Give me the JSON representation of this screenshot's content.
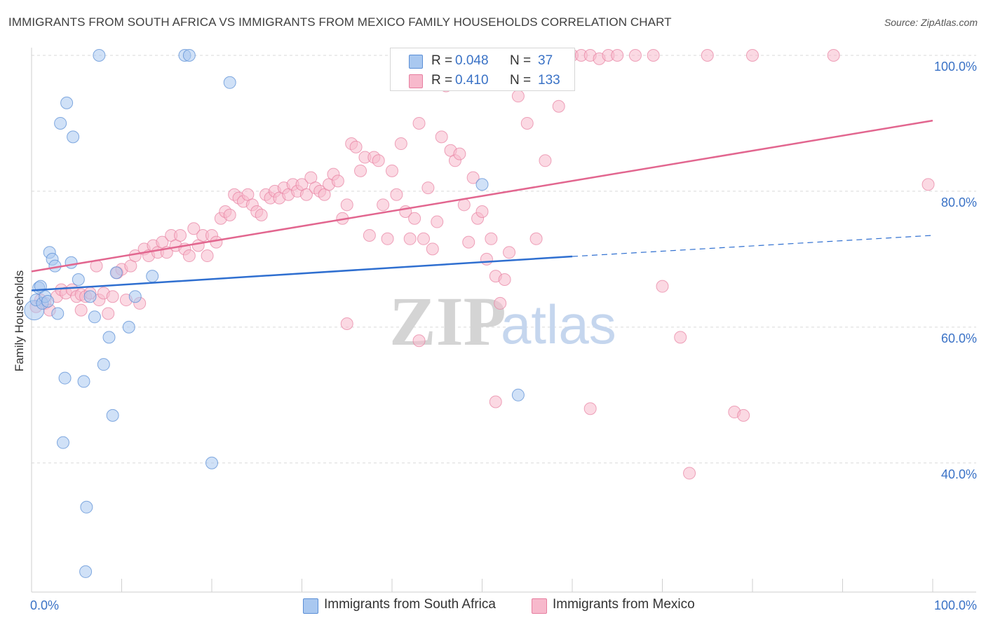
{
  "title": "IMMIGRANTS FROM SOUTH AFRICA VS IMMIGRANTS FROM MEXICO FAMILY HOUSEHOLDS CORRELATION CHART",
  "source": "Source: ZipAtlas.com",
  "watermark": {
    "zip": "ZIP",
    "atlas": "atlas"
  },
  "legend": {
    "r_label": "R =",
    "n_label": "N =",
    "rows": [
      {
        "r": "0.048",
        "n": "37"
      },
      {
        "r": "0.410",
        "n": "133"
      }
    ]
  },
  "colors": {
    "south_africa_fill": "#a9c8f0",
    "south_africa_stroke": "#5b8fd6",
    "south_africa_line": "#2f6fd0",
    "mexico_fill": "#f7b9cc",
    "mexico_stroke": "#e77fa0",
    "mexico_line": "#e2668f",
    "tick_text": "#3a72c6",
    "grid": "#d9d9d9"
  },
  "chart_data": {
    "type": "scatter",
    "title": "IMMIGRANTS FROM SOUTH AFRICA VS IMMIGRANTS FROM MEXICO FAMILY HOUSEHOLDS CORRELATION CHART",
    "xlabel": "",
    "ylabel": "Family Households",
    "xlim": [
      0,
      100
    ],
    "ylim": [
      21,
      104
    ],
    "x_tick_labels": [
      "0.0%",
      "100.0%"
    ],
    "y_ticks": [
      40,
      60,
      80,
      100
    ],
    "y_tick_labels": [
      "40.0%",
      "60.0%",
      "80.0%",
      "100.0%"
    ],
    "grid": "horizontal dashed",
    "legend_position": "top-center",
    "series": [
      {
        "name": "Immigrants from South Africa",
        "r": 0.048,
        "n": 37,
        "trend": {
          "x": [
            0,
            60
          ],
          "y": [
            65.4,
            70.4
          ],
          "dashed_extension_to": [
            100,
            73.5
          ]
        },
        "points": [
          [
            0.3,
            62.5
          ],
          [
            0.5,
            64.0
          ],
          [
            0.8,
            65.8
          ],
          [
            1.0,
            66.0
          ],
          [
            1.2,
            63.5
          ],
          [
            1.5,
            64.5
          ],
          [
            1.8,
            63.8
          ],
          [
            2.0,
            71.0
          ],
          [
            2.3,
            70.0
          ],
          [
            2.6,
            69.0
          ],
          [
            2.9,
            62.0
          ],
          [
            3.2,
            90.0
          ],
          [
            3.9,
            93.0
          ],
          [
            4.4,
            69.5
          ],
          [
            4.6,
            88.0
          ],
          [
            5.2,
            67.0
          ],
          [
            6.5,
            64.5
          ],
          [
            7.0,
            61.5
          ],
          [
            7.5,
            100.0
          ],
          [
            8.0,
            54.5
          ],
          [
            8.6,
            58.5
          ],
          [
            9.0,
            47.0
          ],
          [
            9.4,
            68.0
          ],
          [
            10.8,
            60.0
          ],
          [
            11.5,
            64.5
          ],
          [
            13.4,
            67.5
          ],
          [
            17.0,
            100.0
          ],
          [
            17.5,
            100.0
          ],
          [
            20.0,
            40.0
          ],
          [
            22.0,
            96.0
          ],
          [
            3.7,
            52.5
          ],
          [
            5.8,
            52.0
          ],
          [
            3.5,
            43.0
          ],
          [
            6.1,
            33.5
          ],
          [
            6.0,
            24.0
          ],
          [
            50.0,
            81.0
          ],
          [
            54.0,
            50.0
          ]
        ]
      },
      {
        "name": "Immigrants from Mexico",
        "r": 0.41,
        "n": 133,
        "trend": {
          "x": [
            0,
            100
          ],
          "y": [
            68.2,
            90.4
          ]
        },
        "points": [
          [
            0.5,
            63.0
          ],
          [
            1.0,
            64.0
          ],
          [
            1.5,
            63.5
          ],
          [
            2.0,
            62.5
          ],
          [
            2.8,
            64.5
          ],
          [
            3.3,
            65.5
          ],
          [
            3.8,
            65.0
          ],
          [
            4.5,
            65.5
          ],
          [
            5.0,
            64.5
          ],
          [
            5.5,
            64.8
          ],
          [
            6.0,
            64.5
          ],
          [
            6.5,
            65.0
          ],
          [
            7.2,
            69.0
          ],
          [
            7.5,
            64.0
          ],
          [
            8.0,
            65.0
          ],
          [
            8.5,
            62.0
          ],
          [
            9.0,
            64.5
          ],
          [
            9.5,
            68.0
          ],
          [
            10.0,
            68.5
          ],
          [
            10.5,
            64.0
          ],
          [
            11.0,
            69.0
          ],
          [
            11.5,
            70.5
          ],
          [
            12.0,
            63.5
          ],
          [
            12.5,
            71.5
          ],
          [
            13.0,
            70.5
          ],
          [
            13.5,
            72.0
          ],
          [
            14.0,
            71.0
          ],
          [
            14.5,
            72.5
          ],
          [
            15.0,
            71.0
          ],
          [
            15.5,
            73.5
          ],
          [
            16.0,
            72.0
          ],
          [
            16.5,
            73.5
          ],
          [
            17.0,
            71.5
          ],
          [
            17.5,
            70.5
          ],
          [
            18.0,
            74.5
          ],
          [
            18.5,
            72.0
          ],
          [
            19.0,
            73.5
          ],
          [
            19.5,
            70.5
          ],
          [
            20.0,
            73.5
          ],
          [
            20.5,
            72.5
          ],
          [
            21.0,
            76.0
          ],
          [
            21.5,
            77.0
          ],
          [
            22.0,
            76.5
          ],
          [
            22.5,
            79.5
          ],
          [
            23.0,
            79.0
          ],
          [
            23.5,
            78.5
          ],
          [
            24.0,
            79.5
          ],
          [
            24.5,
            78.0
          ],
          [
            25.0,
            77.0
          ],
          [
            25.5,
            76.5
          ],
          [
            26.0,
            79.5
          ],
          [
            26.5,
            79.0
          ],
          [
            27.0,
            80.0
          ],
          [
            27.5,
            79.0
          ],
          [
            28.0,
            80.5
          ],
          [
            28.5,
            79.5
          ],
          [
            29.0,
            81.0
          ],
          [
            29.5,
            80.0
          ],
          [
            30.0,
            81.0
          ],
          [
            30.5,
            79.5
          ],
          [
            31.0,
            82.0
          ],
          [
            31.5,
            80.5
          ],
          [
            32.0,
            80.0
          ],
          [
            32.5,
            79.5
          ],
          [
            33.0,
            81.0
          ],
          [
            33.5,
            82.5
          ],
          [
            34.0,
            81.5
          ],
          [
            34.5,
            76.0
          ],
          [
            35.0,
            78.0
          ],
          [
            35.5,
            87.0
          ],
          [
            36.0,
            86.5
          ],
          [
            36.5,
            83.0
          ],
          [
            37.0,
            85.0
          ],
          [
            37.5,
            73.5
          ],
          [
            38.0,
            85.0
          ],
          [
            38.5,
            84.5
          ],
          [
            39.0,
            78.0
          ],
          [
            39.5,
            73.0
          ],
          [
            40.0,
            83.0
          ],
          [
            40.5,
            79.5
          ],
          [
            41.0,
            87.0
          ],
          [
            41.5,
            77.0
          ],
          [
            42.0,
            73.0
          ],
          [
            42.5,
            76.0
          ],
          [
            43.0,
            90.0
          ],
          [
            43.5,
            73.0
          ],
          [
            44.0,
            80.5
          ],
          [
            44.5,
            71.5
          ],
          [
            45.0,
            75.5
          ],
          [
            45.5,
            88.0
          ],
          [
            46.0,
            95.5
          ],
          [
            46.5,
            86.0
          ],
          [
            47.0,
            84.5
          ],
          [
            47.5,
            85.5
          ],
          [
            48.0,
            78.0
          ],
          [
            48.5,
            72.5
          ],
          [
            49.0,
            82.0
          ],
          [
            49.5,
            76.0
          ],
          [
            50.0,
            77.0
          ],
          [
            50.5,
            70.0
          ],
          [
            51.0,
            73.0
          ],
          [
            51.5,
            67.5
          ],
          [
            52.0,
            63.5
          ],
          [
            52.5,
            67.0
          ],
          [
            53.0,
            71.0
          ],
          [
            53.5,
            100.0
          ],
          [
            54.0,
            94.0
          ],
          [
            55.0,
            90.0
          ],
          [
            56.0,
            73.0
          ],
          [
            57.0,
            84.5
          ],
          [
            58.0,
            99.0
          ],
          [
            58.5,
            92.5
          ],
          [
            60.0,
            100.0
          ],
          [
            61.0,
            100.0
          ],
          [
            62.0,
            100.0
          ],
          [
            63.0,
            99.5
          ],
          [
            64.0,
            100.0
          ],
          [
            65.0,
            100.0
          ],
          [
            67.0,
            100.0
          ],
          [
            69.0,
            100.0
          ],
          [
            70.0,
            66.0
          ],
          [
            72.0,
            58.5
          ],
          [
            75.0,
            100.0
          ],
          [
            78.0,
            47.5
          ],
          [
            80.0,
            100.0
          ],
          [
            89.0,
            100.0
          ],
          [
            99.5,
            81.0
          ],
          [
            35.0,
            60.5
          ],
          [
            43.0,
            58.0
          ],
          [
            51.5,
            49.0
          ],
          [
            62.0,
            48.0
          ],
          [
            73.0,
            38.5
          ],
          [
            79.0,
            47.0
          ],
          [
            5.5,
            62.5
          ]
        ]
      }
    ]
  },
  "bottom_legend": [
    {
      "label": "Immigrants from South Africa"
    },
    {
      "label": "Immigrants from Mexico"
    }
  ]
}
